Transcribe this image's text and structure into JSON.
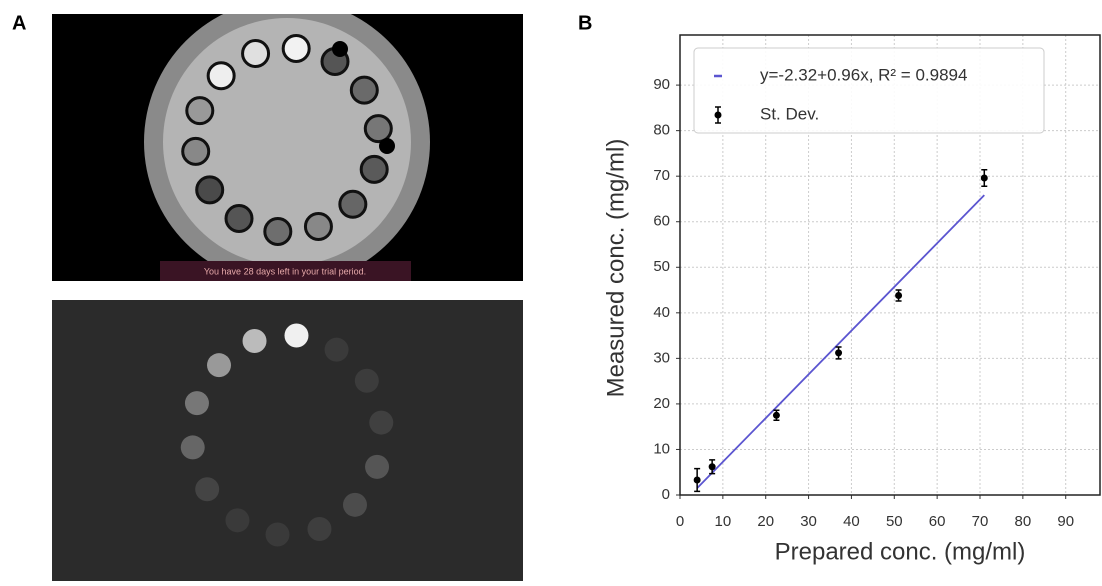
{
  "panels": {
    "a_label": "A",
    "b_label": "B",
    "trial_notice": "You have 28 days left in your trial period."
  },
  "chart_data": {
    "type": "scatter",
    "xlabel": "Prepared conc. (mg/ml)",
    "ylabel": "Measured conc. (mg/ml)",
    "xlim": [
      0,
      98
    ],
    "ylim": [
      0,
      101
    ],
    "xticks": [
      0,
      10,
      20,
      30,
      40,
      50,
      60,
      70,
      80,
      90
    ],
    "yticks": [
      0,
      10,
      20,
      30,
      40,
      50,
      60,
      70,
      80,
      90
    ],
    "grid": true,
    "legend": "upper left",
    "series": [
      {
        "name": "y=-2.32+0.96x, R² = 0.9894",
        "type": "line",
        "color": "#5b55d0",
        "x": [
          4,
          71
        ],
        "values": [
          1.52,
          65.84
        ]
      },
      {
        "name": "St. Dev.",
        "type": "errorbar",
        "color": "#000000",
        "x": [
          4,
          7.5,
          22.5,
          37,
          51,
          71
        ],
        "values": [
          3.3,
          6.2,
          17.5,
          31.2,
          43.8,
          69.6
        ],
        "errors": [
          2.5,
          1.5,
          1.1,
          1.3,
          1.2,
          1.8
        ]
      }
    ]
  }
}
